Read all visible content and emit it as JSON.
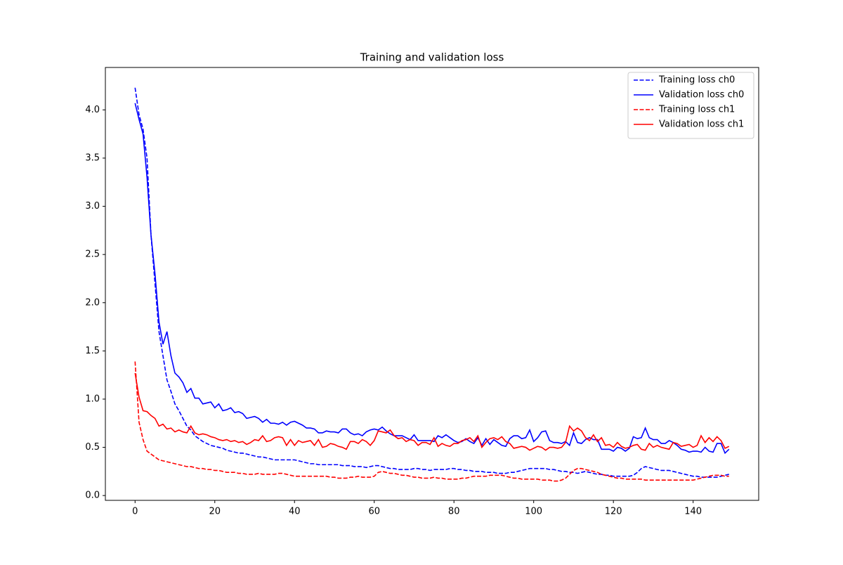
{
  "chart_data": {
    "type": "line",
    "title": "Training and validation loss",
    "x": [
      0,
      1,
      2,
      3,
      4,
      5,
      6,
      7,
      8,
      9,
      10,
      11,
      12,
      13,
      14,
      15,
      16,
      17,
      18,
      19,
      20,
      21,
      22,
      23,
      24,
      25,
      26,
      27,
      28,
      29,
      30,
      31,
      32,
      33,
      34,
      35,
      36,
      37,
      38,
      39,
      40,
      41,
      42,
      43,
      44,
      45,
      46,
      47,
      48,
      49,
      50,
      51,
      52,
      53,
      54,
      55,
      56,
      57,
      58,
      59,
      60,
      61,
      62,
      63,
      64,
      65,
      66,
      67,
      68,
      69,
      70,
      71,
      72,
      73,
      74,
      75,
      76,
      77,
      78,
      79,
      80,
      81,
      82,
      83,
      84,
      85,
      86,
      87,
      88,
      89,
      90,
      91,
      92,
      93,
      94,
      95,
      96,
      97,
      98,
      99,
      100,
      101,
      102,
      103,
      104,
      105,
      106,
      107,
      108,
      109,
      110,
      111,
      112,
      113,
      114,
      115,
      116,
      117,
      118,
      119,
      120,
      121,
      122,
      123,
      124,
      125,
      126,
      127,
      128,
      129,
      130,
      131,
      132,
      133,
      134,
      135,
      136,
      137,
      138,
      139,
      140,
      141,
      142,
      143,
      144,
      145,
      146,
      147,
      148,
      149
    ],
    "series": [
      {
        "name": "Training loss ch0",
        "color": "#0000ff",
        "linestyle": "dashed",
        "values": [
          4.23,
          3.95,
          3.8,
          3.5,
          2.7,
          2.2,
          1.7,
          1.45,
          1.2,
          1.08,
          0.95,
          0.88,
          0.8,
          0.72,
          0.68,
          0.62,
          0.59,
          0.56,
          0.54,
          0.52,
          0.51,
          0.5,
          0.49,
          0.47,
          0.46,
          0.45,
          0.44,
          0.44,
          0.43,
          0.42,
          0.41,
          0.4,
          0.4,
          0.39,
          0.38,
          0.37,
          0.37,
          0.37,
          0.37,
          0.37,
          0.37,
          0.36,
          0.35,
          0.34,
          0.33,
          0.33,
          0.32,
          0.32,
          0.32,
          0.32,
          0.32,
          0.32,
          0.31,
          0.31,
          0.31,
          0.3,
          0.3,
          0.3,
          0.29,
          0.3,
          0.31,
          0.31,
          0.3,
          0.29,
          0.28,
          0.28,
          0.27,
          0.27,
          0.27,
          0.27,
          0.28,
          0.28,
          0.27,
          0.27,
          0.26,
          0.27,
          0.27,
          0.27,
          0.27,
          0.28,
          0.28,
          0.27,
          0.27,
          0.26,
          0.26,
          0.25,
          0.25,
          0.25,
          0.24,
          0.24,
          0.24,
          0.23,
          0.23,
          0.23,
          0.24,
          0.24,
          0.25,
          0.26,
          0.27,
          0.28,
          0.28,
          0.28,
          0.28,
          0.28,
          0.27,
          0.27,
          0.26,
          0.25,
          0.25,
          0.24,
          0.24,
          0.23,
          0.24,
          0.25,
          0.24,
          0.23,
          0.22,
          0.22,
          0.21,
          0.21,
          0.2,
          0.2,
          0.2,
          0.2,
          0.2,
          0.21,
          0.24,
          0.28,
          0.3,
          0.29,
          0.28,
          0.27,
          0.26,
          0.26,
          0.26,
          0.25,
          0.24,
          0.23,
          0.22,
          0.21,
          0.2,
          0.2,
          0.19,
          0.19,
          0.19,
          0.19,
          0.19,
          0.2,
          0.21,
          0.22
        ]
      },
      {
        "name": "Validation loss ch0",
        "color": "#0000ff",
        "linestyle": "solid",
        "values": [
          4.07,
          3.9,
          3.75,
          3.3,
          2.7,
          2.3,
          1.8,
          1.57,
          1.7,
          1.45,
          1.27,
          1.23,
          1.17,
          1.07,
          1.11,
          1.01,
          1.01,
          0.95,
          0.96,
          0.97,
          0.91,
          0.95,
          0.88,
          0.89,
          0.91,
          0.86,
          0.87,
          0.85,
          0.8,
          0.81,
          0.82,
          0.8,
          0.76,
          0.79,
          0.75,
          0.75,
          0.74,
          0.76,
          0.73,
          0.76,
          0.77,
          0.75,
          0.73,
          0.7,
          0.7,
          0.69,
          0.65,
          0.65,
          0.67,
          0.66,
          0.66,
          0.65,
          0.69,
          0.69,
          0.65,
          0.63,
          0.64,
          0.62,
          0.66,
          0.68,
          0.69,
          0.68,
          0.71,
          0.67,
          0.64,
          0.62,
          0.62,
          0.62,
          0.6,
          0.58,
          0.63,
          0.57,
          0.57,
          0.57,
          0.57,
          0.56,
          0.62,
          0.6,
          0.63,
          0.6,
          0.57,
          0.55,
          0.56,
          0.59,
          0.56,
          0.54,
          0.6,
          0.52,
          0.59,
          0.53,
          0.58,
          0.55,
          0.52,
          0.51,
          0.59,
          0.62,
          0.62,
          0.59,
          0.6,
          0.68,
          0.56,
          0.6,
          0.66,
          0.67,
          0.57,
          0.55,
          0.55,
          0.54,
          0.56,
          0.52,
          0.65,
          0.55,
          0.54,
          0.58,
          0.6,
          0.58,
          0.58,
          0.48,
          0.48,
          0.48,
          0.46,
          0.5,
          0.49,
          0.46,
          0.49,
          0.61,
          0.59,
          0.6,
          0.7,
          0.6,
          0.58,
          0.58,
          0.54,
          0.54,
          0.57,
          0.55,
          0.52,
          0.48,
          0.47,
          0.45,
          0.46,
          0.46,
          0.45,
          0.5,
          0.46,
          0.45,
          0.54,
          0.54,
          0.44,
          0.48
        ]
      },
      {
        "name": "Training loss ch1",
        "color": "#ff0000",
        "linestyle": "dashed",
        "values": [
          1.39,
          0.76,
          0.58,
          0.46,
          0.43,
          0.4,
          0.37,
          0.36,
          0.35,
          0.34,
          0.33,
          0.32,
          0.31,
          0.3,
          0.3,
          0.29,
          0.28,
          0.28,
          0.27,
          0.27,
          0.26,
          0.26,
          0.25,
          0.24,
          0.24,
          0.24,
          0.23,
          0.23,
          0.22,
          0.22,
          0.22,
          0.23,
          0.22,
          0.22,
          0.22,
          0.22,
          0.23,
          0.23,
          0.22,
          0.21,
          0.2,
          0.2,
          0.2,
          0.2,
          0.2,
          0.2,
          0.2,
          0.2,
          0.2,
          0.19,
          0.19,
          0.18,
          0.18,
          0.18,
          0.19,
          0.19,
          0.2,
          0.19,
          0.19,
          0.19,
          0.2,
          0.24,
          0.25,
          0.24,
          0.23,
          0.23,
          0.22,
          0.21,
          0.21,
          0.2,
          0.19,
          0.19,
          0.18,
          0.18,
          0.18,
          0.19,
          0.18,
          0.18,
          0.17,
          0.17,
          0.17,
          0.17,
          0.18,
          0.18,
          0.19,
          0.2,
          0.2,
          0.2,
          0.2,
          0.21,
          0.21,
          0.21,
          0.21,
          0.2,
          0.19,
          0.18,
          0.18,
          0.17,
          0.17,
          0.17,
          0.17,
          0.17,
          0.16,
          0.16,
          0.16,
          0.15,
          0.15,
          0.16,
          0.18,
          0.22,
          0.26,
          0.28,
          0.28,
          0.27,
          0.26,
          0.25,
          0.24,
          0.22,
          0.21,
          0.2,
          0.19,
          0.18,
          0.18,
          0.17,
          0.17,
          0.17,
          0.17,
          0.17,
          0.16,
          0.16,
          0.16,
          0.16,
          0.16,
          0.16,
          0.16,
          0.16,
          0.16,
          0.16,
          0.16,
          0.16,
          0.16,
          0.17,
          0.18,
          0.19,
          0.2,
          0.21,
          0.21,
          0.21,
          0.2,
          0.2
        ]
      },
      {
        "name": "Validation loss ch1",
        "color": "#ff0000",
        "linestyle": "solid",
        "values": [
          1.27,
          1.02,
          0.88,
          0.87,
          0.83,
          0.8,
          0.72,
          0.74,
          0.69,
          0.7,
          0.66,
          0.68,
          0.66,
          0.65,
          0.72,
          0.65,
          0.63,
          0.64,
          0.63,
          0.61,
          0.6,
          0.58,
          0.57,
          0.58,
          0.56,
          0.57,
          0.55,
          0.56,
          0.53,
          0.55,
          0.58,
          0.57,
          0.62,
          0.56,
          0.57,
          0.6,
          0.61,
          0.6,
          0.52,
          0.58,
          0.52,
          0.57,
          0.55,
          0.56,
          0.57,
          0.52,
          0.58,
          0.5,
          0.51,
          0.54,
          0.53,
          0.51,
          0.5,
          0.48,
          0.56,
          0.56,
          0.54,
          0.58,
          0.56,
          0.52,
          0.57,
          0.67,
          0.66,
          0.65,
          0.68,
          0.62,
          0.59,
          0.6,
          0.56,
          0.58,
          0.57,
          0.52,
          0.55,
          0.55,
          0.53,
          0.6,
          0.51,
          0.54,
          0.52,
          0.51,
          0.54,
          0.54,
          0.57,
          0.58,
          0.6,
          0.56,
          0.62,
          0.5,
          0.55,
          0.59,
          0.6,
          0.58,
          0.61,
          0.56,
          0.54,
          0.49,
          0.5,
          0.51,
          0.5,
          0.47,
          0.49,
          0.51,
          0.5,
          0.47,
          0.5,
          0.5,
          0.49,
          0.5,
          0.55,
          0.72,
          0.67,
          0.7,
          0.67,
          0.6,
          0.57,
          0.63,
          0.56,
          0.6,
          0.52,
          0.53,
          0.5,
          0.55,
          0.51,
          0.49,
          0.5,
          0.52,
          0.53,
          0.48,
          0.47,
          0.54,
          0.5,
          0.52,
          0.5,
          0.49,
          0.48,
          0.55,
          0.54,
          0.51,
          0.52,
          0.53,
          0.5,
          0.52,
          0.62,
          0.55,
          0.6,
          0.56,
          0.61,
          0.57,
          0.49,
          0.51
        ]
      }
    ],
    "xlim": [
      -7.45,
      156.45
    ],
    "ylim": [
      -0.05,
      4.44
    ],
    "xticks": [
      0,
      20,
      40,
      60,
      80,
      100,
      120,
      140
    ],
    "yticks": [
      {
        "value": 0,
        "label": "0.0"
      },
      0.5,
      {
        "value": 1,
        "label": "1.0"
      },
      1.5,
      {
        "value": 2,
        "label": "2.0"
      },
      2.5,
      {
        "value": 3,
        "label": "3.0"
      },
      3.5,
      {
        "value": 4,
        "label": "4.0"
      }
    ],
    "legend": "upper right"
  }
}
